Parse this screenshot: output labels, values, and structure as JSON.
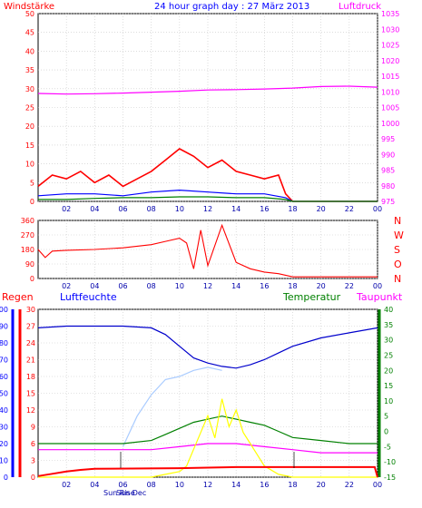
{
  "chart_data": [
    {
      "type": "line",
      "title": "24 hour graph day : 27 März 2013",
      "left_label": "Windstärke",
      "right_label": "Luftdruck",
      "x_ticks": [
        "02",
        "04",
        "06",
        "08",
        "10",
        "12",
        "14",
        "16",
        "18",
        "20",
        "22",
        "00"
      ],
      "ylim_left": [
        0,
        50
      ],
      "y_ticks_left": [
        "50",
        "45",
        "40",
        "35",
        "30",
        "25",
        "20",
        "15",
        "10",
        "5",
        "0"
      ],
      "ylim_right": [
        975,
        1035
      ],
      "y_ticks_right": [
        "1035",
        "1030",
        "1025",
        "1020",
        "1015",
        "1010",
        "1005",
        "1000",
        "995",
        "990",
        "985",
        "980",
        "975"
      ],
      "grid": true,
      "series": [
        {
          "color": "#ff00ff",
          "axis": "right",
          "x": [
            0,
            2,
            4,
            6,
            8,
            10,
            12,
            14,
            16,
            18,
            20,
            22,
            24
          ],
          "values": [
            1009.5,
            1009.3,
            1009.4,
            1009.6,
            1009.9,
            1010.2,
            1010.6,
            1010.7,
            1010.9,
            1011.2,
            1011.7,
            1011.8,
            1011.5
          ]
        },
        {
          "color": "#ff0000",
          "axis": "left",
          "x": [
            0,
            1,
            2,
            3,
            4,
            5,
            6,
            7,
            8,
            9,
            10,
            11,
            12,
            13,
            14,
            15,
            16,
            17,
            17.5,
            18,
            20,
            22,
            24
          ],
          "values": [
            4,
            7,
            6,
            8,
            5,
            7,
            4,
            6,
            8,
            11,
            14,
            12,
            9,
            11,
            8,
            7,
            6,
            7,
            2,
            0,
            0,
            0,
            0
          ]
        },
        {
          "color": "#0000ff",
          "axis": "left",
          "x": [
            0,
            2,
            4,
            6,
            8,
            10,
            12,
            14,
            16,
            17.5,
            18,
            24
          ],
          "values": [
            1.5,
            2,
            2,
            1.5,
            2.5,
            3,
            2.5,
            2,
            2,
            1,
            0,
            0
          ]
        },
        {
          "color": "#008000",
          "axis": "left",
          "x": [
            0,
            2,
            4,
            6,
            8,
            10,
            12,
            14,
            16,
            17.5,
            18,
            24
          ],
          "values": [
            0.5,
            0.5,
            0.8,
            1,
            1,
            1.2,
            1.2,
            1,
            1,
            0.5,
            0,
            0
          ]
        }
      ]
    },
    {
      "type": "line",
      "ylim": [
        0,
        360
      ],
      "y_ticks": [
        "360",
        "270",
        "180",
        "90",
        "0"
      ],
      "direction_labels": [
        "N",
        "W",
        "S",
        "O",
        "N"
      ],
      "x_ticks": [
        "02",
        "04",
        "06",
        "08",
        "10",
        "12",
        "14",
        "16",
        "18",
        "20",
        "22",
        "00"
      ],
      "grid": true,
      "series": [
        {
          "color": "#ff0000",
          "x": [
            0,
            0.5,
            1,
            2,
            4,
            6,
            8,
            9,
            10,
            10.5,
            11,
            11.5,
            12,
            13,
            14,
            15,
            16,
            17,
            18,
            20,
            22,
            24
          ],
          "values": [
            180,
            130,
            170,
            175,
            180,
            190,
            210,
            230,
            250,
            220,
            60,
            300,
            80,
            330,
            100,
            60,
            40,
            30,
            10,
            10,
            10,
            10
          ]
        }
      ]
    },
    {
      "type": "line",
      "left_labels": [
        "Regen",
        "Luftfeuchte"
      ],
      "right_labels": [
        "Temperatur",
        "Taupunkt"
      ],
      "x_ticks": [
        "02",
        "04",
        "06",
        "08",
        "10",
        "12",
        "14",
        "16",
        "18",
        "20",
        "22",
        "00"
      ],
      "x_annotations": [
        "Sun Rise",
        "Sun Dec"
      ],
      "ylim_humidity": [
        0,
        100
      ],
      "y_ticks_humidity": [
        "100",
        "90",
        "80",
        "70",
        "60",
        "50",
        "40",
        "30",
        "20",
        "10",
        "0"
      ],
      "ylim_rain": [
        0,
        30
      ],
      "y_ticks_rain": [
        "30",
        "27",
        "24",
        "21",
        "18",
        "15",
        "12",
        "9",
        "6",
        "3",
        "0"
      ],
      "ylim_temp": [
        -15,
        40
      ],
      "y_ticks_temp": [
        "40",
        "35",
        "30",
        "25",
        "20",
        "15",
        "10",
        "5",
        "0",
        "-5",
        "-10",
        "-15"
      ],
      "grid": true,
      "series": [
        {
          "color": "#0000cc",
          "axis": "humidity",
          "x": [
            0,
            2,
            4,
            6,
            8,
            9,
            10,
            11,
            12,
            13,
            14,
            15,
            16,
            17,
            18,
            20,
            22,
            24
          ],
          "values": [
            89,
            90,
            90,
            90,
            89,
            85,
            78,
            71,
            68,
            66,
            65,
            67,
            70,
            74,
            78,
            83,
            86,
            89
          ]
        },
        {
          "color": "#aaccff",
          "axis": "temp",
          "x": [
            6,
            7,
            8,
            9,
            10,
            11,
            12,
            13
          ],
          "values": [
            -5,
            5,
            12,
            17,
            18,
            20,
            21,
            20
          ]
        },
        {
          "color": "#008000",
          "axis": "temp",
          "x": [
            0,
            2,
            4,
            6,
            8,
            9,
            10,
            11,
            12,
            13,
            14,
            15,
            16,
            17,
            18,
            20,
            22,
            24
          ],
          "values": [
            -4,
            -4,
            -4,
            -4,
            -3,
            -1,
            1,
            3,
            4,
            5,
            4,
            3,
            2,
            0,
            -2,
            -3,
            -4,
            -4
          ]
        },
        {
          "color": "#ff00ff",
          "axis": "temp",
          "x": [
            0,
            2,
            4,
            6,
            8,
            10,
            12,
            13,
            14,
            16,
            18,
            20,
            22,
            24
          ],
          "values": [
            -6,
            -6,
            -6,
            -6,
            -6,
            -5,
            -4,
            -4,
            -4,
            -5,
            -6,
            -7,
            -7,
            -7
          ]
        },
        {
          "color": "#ffff00",
          "axis": "rain",
          "x": [
            0,
            6,
            8,
            9,
            10,
            10.5,
            11,
            11.5,
            12,
            12.5,
            13,
            13.5,
            14,
            14.5,
            15,
            15.5,
            16,
            17,
            18,
            20,
            22,
            24
          ],
          "values": [
            0,
            0,
            0,
            0.5,
            1,
            2,
            5,
            8,
            11,
            7,
            14,
            9,
            12,
            8,
            6,
            4,
            2,
            0.5,
            0,
            0,
            0,
            0
          ]
        },
        {
          "color": "#ff0000",
          "axis": "rain",
          "x": [
            0,
            1,
            2,
            3,
            4,
            10,
            12,
            14,
            16,
            18,
            20,
            22,
            23.8,
            24
          ],
          "values": [
            0.2,
            0.6,
            1,
            1.3,
            1.5,
            1.6,
            1.7,
            1.8,
            1.8,
            1.8,
            1.8,
            1.8,
            1.8,
            0
          ]
        }
      ]
    }
  ]
}
